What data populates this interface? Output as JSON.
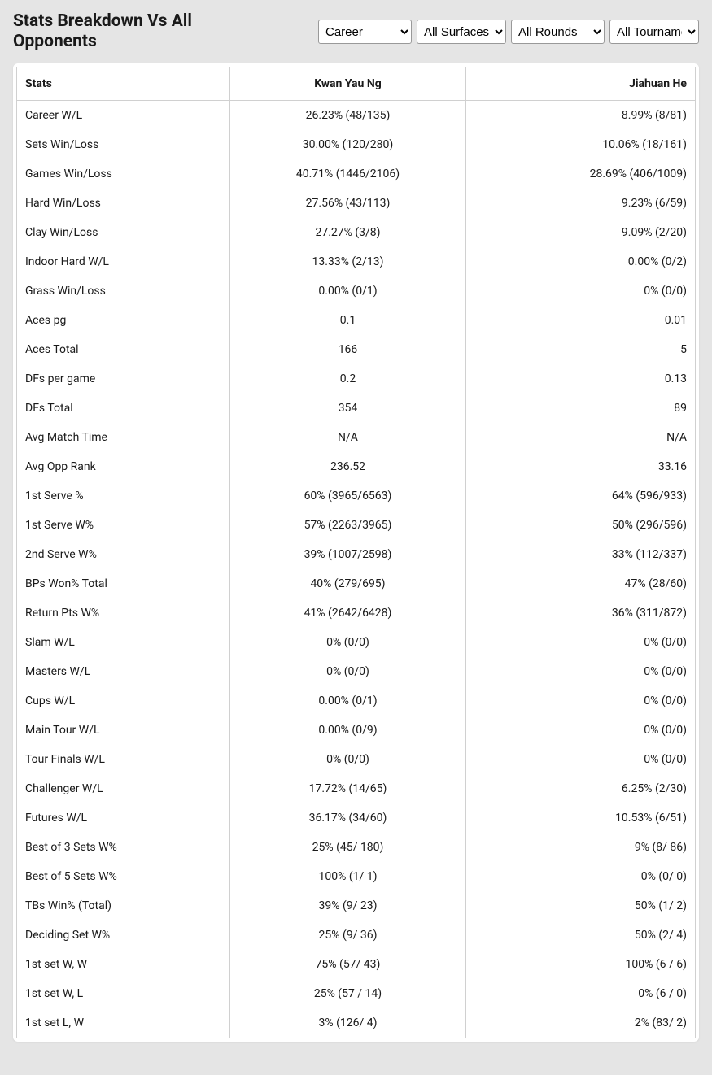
{
  "header": {
    "title": "Stats Breakdown Vs All Opponents"
  },
  "filters": {
    "career": {
      "selected": "Career",
      "options": [
        "Career"
      ]
    },
    "surface": {
      "selected": "All Surfaces",
      "options": [
        "All Surfaces"
      ]
    },
    "round": {
      "selected": "All Rounds",
      "options": [
        "All Rounds"
      ]
    },
    "tournament": {
      "selected": "All Tournaments",
      "options": [
        "All Tournaments"
      ]
    }
  },
  "table": {
    "columns": {
      "stats": "Stats",
      "player1": "Kwan Yau Ng",
      "player2": "Jiahuan He"
    },
    "rows": [
      {
        "stat": "Career W/L",
        "p1": "26.23% (48/135)",
        "p2": "8.99% (8/81)"
      },
      {
        "stat": "Sets Win/Loss",
        "p1": "30.00% (120/280)",
        "p2": "10.06% (18/161)"
      },
      {
        "stat": "Games Win/Loss",
        "p1": "40.71% (1446/2106)",
        "p2": "28.69% (406/1009)"
      },
      {
        "stat": "Hard Win/Loss",
        "p1": "27.56% (43/113)",
        "p2": "9.23% (6/59)"
      },
      {
        "stat": "Clay Win/Loss",
        "p1": "27.27% (3/8)",
        "p2": "9.09% (2/20)"
      },
      {
        "stat": "Indoor Hard W/L",
        "p1": "13.33% (2/13)",
        "p2": "0.00% (0/2)"
      },
      {
        "stat": "Grass Win/Loss",
        "p1": "0.00% (0/1)",
        "p2": "0% (0/0)"
      },
      {
        "stat": "Aces pg",
        "p1": "0.1",
        "p2": "0.01"
      },
      {
        "stat": "Aces Total",
        "p1": "166",
        "p2": "5"
      },
      {
        "stat": "DFs per game",
        "p1": "0.2",
        "p2": "0.13"
      },
      {
        "stat": "DFs Total",
        "p1": "354",
        "p2": "89"
      },
      {
        "stat": "Avg Match Time",
        "p1": "N/A",
        "p2": "N/A"
      },
      {
        "stat": "Avg Opp Rank",
        "p1": "236.52",
        "p2": "33.16"
      },
      {
        "stat": "1st Serve %",
        "p1": "60% (3965/6563)",
        "p2": "64% (596/933)"
      },
      {
        "stat": "1st Serve W%",
        "p1": "57% (2263/3965)",
        "p2": "50% (296/596)"
      },
      {
        "stat": "2nd Serve W%",
        "p1": "39% (1007/2598)",
        "p2": "33% (112/337)"
      },
      {
        "stat": "BPs Won% Total",
        "p1": "40% (279/695)",
        "p2": "47% (28/60)"
      },
      {
        "stat": "Return Pts W%",
        "p1": "41% (2642/6428)",
        "p2": "36% (311/872)"
      },
      {
        "stat": "Slam W/L",
        "p1": "0% (0/0)",
        "p2": "0% (0/0)"
      },
      {
        "stat": "Masters W/L",
        "p1": "0% (0/0)",
        "p2": "0% (0/0)"
      },
      {
        "stat": "Cups W/L",
        "p1": "0.00% (0/1)",
        "p2": "0% (0/0)"
      },
      {
        "stat": "Main Tour W/L",
        "p1": "0.00% (0/9)",
        "p2": "0% (0/0)"
      },
      {
        "stat": "Tour Finals W/L",
        "p1": "0% (0/0)",
        "p2": "0% (0/0)"
      },
      {
        "stat": "Challenger W/L",
        "p1": "17.72% (14/65)",
        "p2": "6.25% (2/30)"
      },
      {
        "stat": "Futures W/L",
        "p1": "36.17% (34/60)",
        "p2": "10.53% (6/51)"
      },
      {
        "stat": "Best of 3 Sets W%",
        "p1": "25% (45/ 180)",
        "p2": "9% (8/ 86)"
      },
      {
        "stat": "Best of 5 Sets W%",
        "p1": "100% (1/ 1)",
        "p2": "0% (0/ 0)"
      },
      {
        "stat": "TBs Win% (Total)",
        "p1": "39% (9/ 23)",
        "p2": "50% (1/ 2)"
      },
      {
        "stat": "Deciding Set W%",
        "p1": "25% (9/ 36)",
        "p2": "50% (2/ 4)"
      },
      {
        "stat": "1st set W, W",
        "p1": "75% (57/ 43)",
        "p2": "100% (6 / 6)"
      },
      {
        "stat": "1st set W, L",
        "p1": "25% (57 / 14)",
        "p2": "0% (6 / 0)"
      },
      {
        "stat": "1st set L, W",
        "p1": "3% (126/ 4)",
        "p2": "2% (83/ 2)"
      }
    ]
  }
}
